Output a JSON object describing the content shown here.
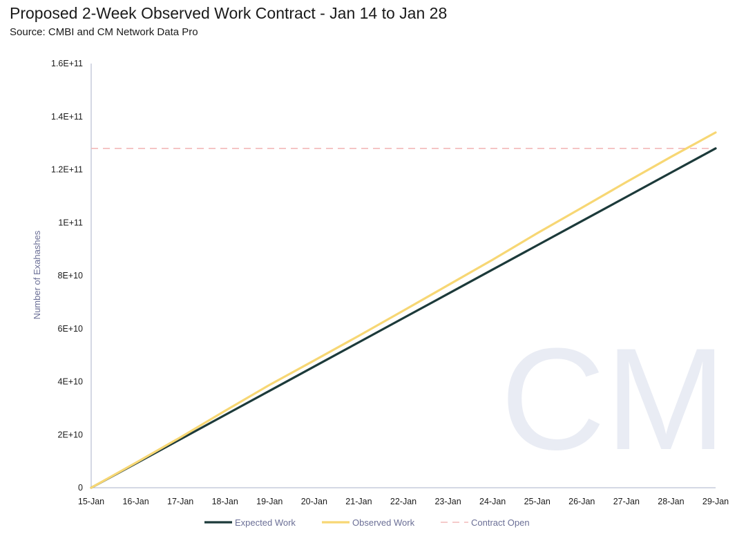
{
  "title": "Proposed 2-Week Observed Work Contract - Jan 14 to Jan 28",
  "subtitle": "Source: CMBI and CM Network Data Pro",
  "watermark": "CM",
  "chart_data": {
    "type": "line",
    "title": "Proposed 2-Week Observed Work Contract - Jan 14 to Jan 28",
    "subtitle": "Source: CMBI and CM Network Data Pro",
    "xlabel": "",
    "ylabel": "Number of Exahashes",
    "x": [
      "15-Jan",
      "16-Jan",
      "17-Jan",
      "18-Jan",
      "19-Jan",
      "20-Jan",
      "21-Jan",
      "22-Jan",
      "23-Jan",
      "24-Jan",
      "25-Jan",
      "26-Jan",
      "27-Jan",
      "28-Jan",
      "29-Jan"
    ],
    "ylim": [
      0,
      160000000000
    ],
    "yticks": [
      {
        "value": 0,
        "label": "0"
      },
      {
        "value": 20000000000,
        "label": "2E+10"
      },
      {
        "value": 40000000000,
        "label": "4E+10"
      },
      {
        "value": 60000000000,
        "label": "6E+10"
      },
      {
        "value": 80000000000,
        "label": "8E+10"
      },
      {
        "value": 100000000000,
        "label": "1E+11"
      },
      {
        "value": 120000000000,
        "label": "1.2E+11"
      },
      {
        "value": 140000000000,
        "label": "1.4E+11"
      },
      {
        "value": 160000000000,
        "label": "1.6E+11"
      }
    ],
    "grid": false,
    "legend_position": "bottom",
    "series": [
      {
        "name": "Expected Work",
        "color": "#1c3a3a",
        "style": "solid",
        "values": [
          0,
          9140000000,
          18280000000,
          27430000000,
          36570000000,
          45710000000,
          54860000000,
          64000000000,
          73140000000,
          82290000000,
          91430000000,
          100570000000,
          109710000000,
          118860000000,
          128000000000
        ]
      },
      {
        "name": "Observed Work",
        "color": "#f7d774",
        "style": "solid",
        "values": [
          0,
          9400000000,
          19000000000,
          29000000000,
          38800000000,
          48000000000,
          57300000000,
          66800000000,
          76400000000,
          86000000000,
          96000000000,
          105600000000,
          115300000000,
          124800000000,
          134000000000
        ]
      },
      {
        "name": "Contract Open",
        "color": "#f2b8b8",
        "style": "dashed",
        "values": [
          128000000000,
          128000000000,
          128000000000,
          128000000000,
          128000000000,
          128000000000,
          128000000000,
          128000000000,
          128000000000,
          128000000000,
          128000000000,
          128000000000,
          128000000000,
          128000000000,
          128000000000
        ]
      }
    ]
  }
}
